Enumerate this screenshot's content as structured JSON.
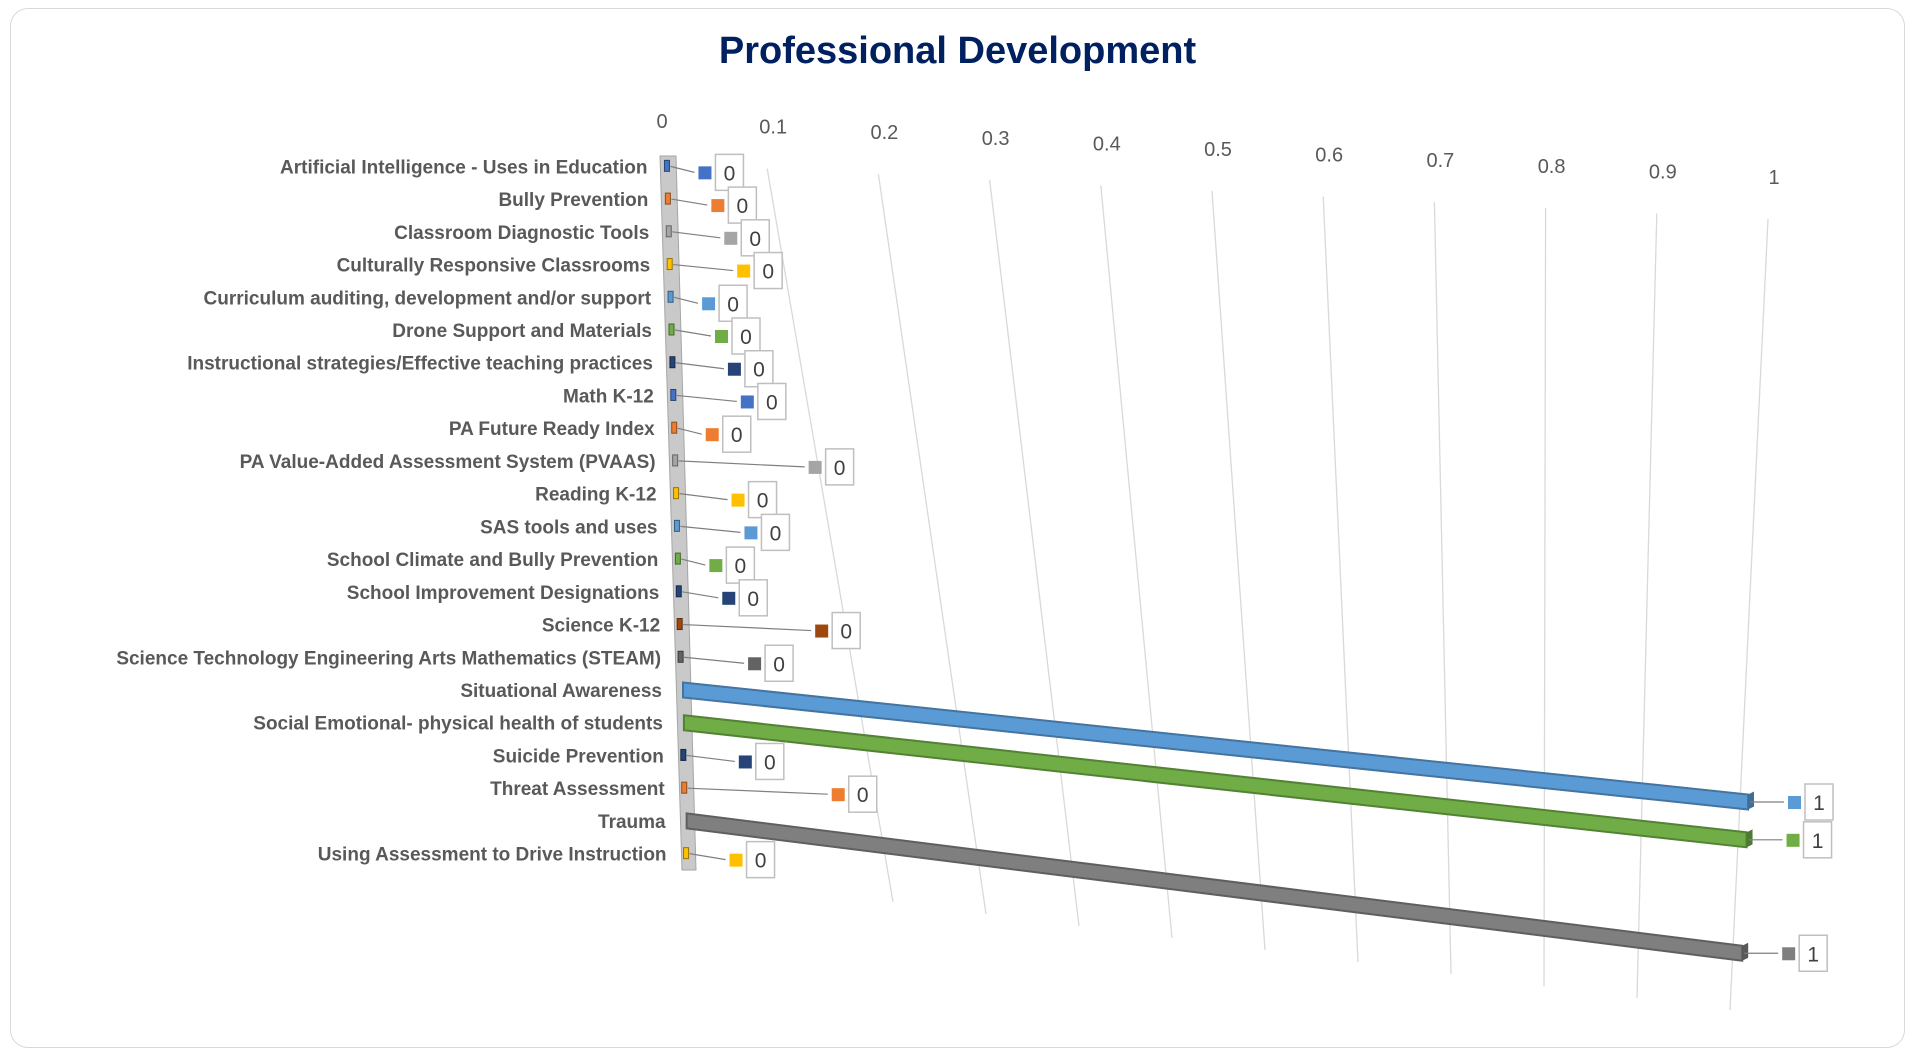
{
  "chart_data": {
    "type": "bar",
    "orientation": "horizontal",
    "title": "Professional Development",
    "categories": [
      "Artificial Intelligence - Uses in Education",
      "Bully Prevention",
      "Classroom Diagnostic Tools",
      "Culturally Responsive Classrooms",
      "Curriculum auditing, development and/or support",
      "Drone Support and Materials",
      "Instructional strategies/Effective teaching practices",
      "Math K-12",
      "PA Future Ready Index",
      "PA Value-Added Assessment System (PVAAS)",
      "Reading K-12",
      "SAS tools and uses",
      "School Climate and Bully Prevention",
      "School Improvement Designations",
      "Science K-12",
      "Science Technology Engineering Arts Mathematics (STEAM)",
      "Situational Awareness",
      "Social Emotional- physical health of students",
      "Suicide Prevention",
      "Threat Assessment",
      "Trauma",
      "Using Assessment to Drive Instruction"
    ],
    "values": [
      0,
      0,
      0,
      0,
      0,
      0,
      0,
      0,
      0,
      0,
      0,
      0,
      0,
      0,
      0,
      0,
      1,
      1,
      0,
      0,
      1,
      0
    ],
    "data_labels": [
      "0",
      "0",
      "0",
      "0",
      "0",
      "0",
      "0",
      "0",
      "0",
      "0",
      "0",
      "0",
      "0",
      "0",
      "0",
      "0",
      "1",
      "1",
      "0",
      "0",
      "1",
      "0"
    ],
    "colors": [
      "#4472c4",
      "#ed7d31",
      "#a5a5a5",
      "#ffc000",
      "#5b9bd5",
      "#70ad47",
      "#264478",
      "#4472c4",
      "#ed7d31",
      "#a5a5a5",
      "#ffc000",
      "#5b9bd5",
      "#70ad47",
      "#264478",
      "#9e480e",
      "#636363",
      "#5b9bd5",
      "#70ad47",
      "#264478",
      "#ed7d31",
      "#7f7f7f",
      "#ffc000"
    ],
    "x_ticks": [
      "0",
      "0.1",
      "0.2",
      "0.3",
      "0.4",
      "0.5",
      "0.6",
      "0.7",
      "0.8",
      "0.9",
      "1"
    ],
    "xlim": [
      0,
      1
    ],
    "grid": true,
    "legend": "none"
  }
}
